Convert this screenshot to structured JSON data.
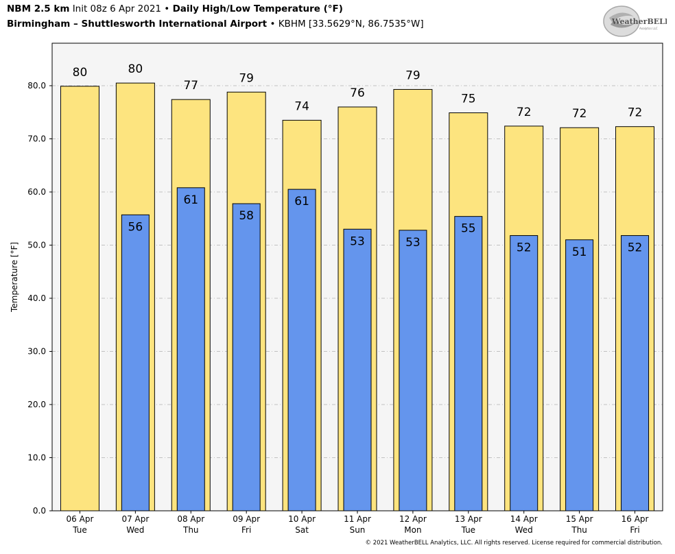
{
  "header": {
    "model": "NBM 2.5 km",
    "init": "Init 08z 6 Apr 2021",
    "bullet": "•",
    "product": "Daily High/Low Temperature (°F)",
    "station": "Birmingham – Shuttlesworth International Airport",
    "station_info": "KBHM [33.5629°N, 86.7535°W]"
  },
  "logo": {
    "text": "WeatherBELL",
    "sub": "Analytics LLC"
  },
  "footer": {
    "copyright": "© 2021 WeatherBELL Analytics, LLC. All rights reserved. License required for commercial distribution."
  },
  "chart_data": {
    "type": "bar",
    "ylabel": "Temperature [°F]",
    "xlabel": "",
    "ylim": [
      0,
      88
    ],
    "yticks": [
      "0.0",
      "10.0",
      "20.0",
      "30.0",
      "40.0",
      "50.0",
      "60.0",
      "70.0",
      "80.0"
    ],
    "grid": true,
    "categories": [
      "06 Apr",
      "07 Apr",
      "08 Apr",
      "09 Apr",
      "10 Apr",
      "11 Apr",
      "12 Apr",
      "13 Apr",
      "14 Apr",
      "15 Apr",
      "16 Apr"
    ],
    "days": [
      "Tue",
      "Wed",
      "Thu",
      "Fri",
      "Sat",
      "Sun",
      "Mon",
      "Tue",
      "Wed",
      "Thu",
      "Fri"
    ],
    "series": [
      {
        "values": [
          79.9,
          80.5,
          77.4,
          78.8,
          73.5,
          76.0,
          79.3,
          74.9,
          72.4,
          72.1,
          72.3
        ],
        "labels": [
          "80",
          "80",
          "77",
          "79",
          "74",
          "76",
          "79",
          "75",
          "72",
          "72",
          "72"
        ],
        "color": "#fde47f"
      },
      {
        "values": [
          null,
          55.7,
          60.8,
          57.8,
          60.5,
          53.0,
          52.8,
          55.4,
          51.8,
          51.0,
          51.8
        ],
        "labels": [
          "",
          "56",
          "61",
          "58",
          "61",
          "53",
          "53",
          "55",
          "52",
          "51",
          "52"
        ],
        "color": "#6495ed"
      }
    ],
    "colors": {
      "plot_bg": "#f5f5f5",
      "grid": "#b0b0b0"
    }
  }
}
